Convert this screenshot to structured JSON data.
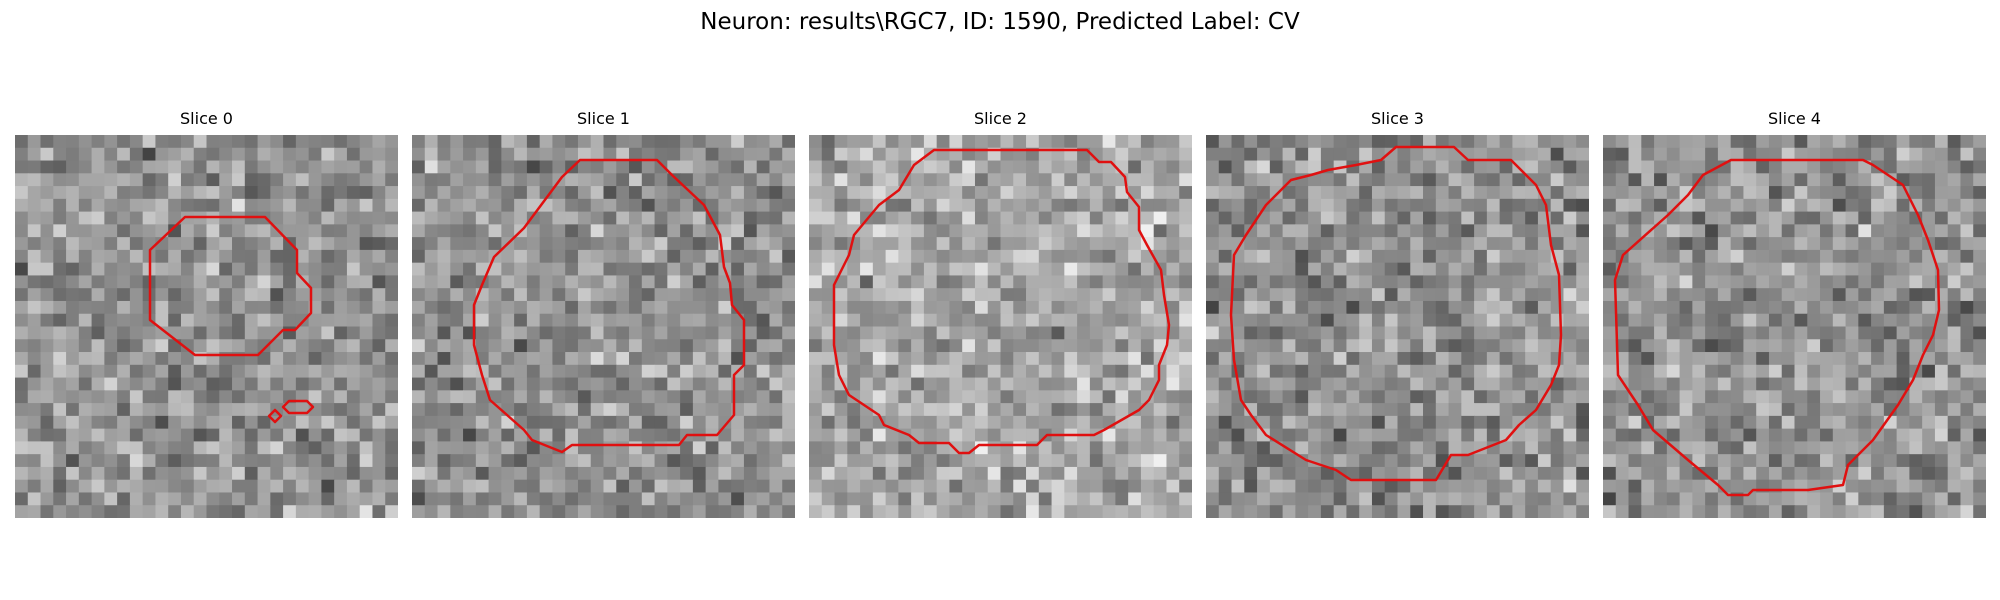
{
  "figure": {
    "title": "Neuron: results\\RGC7, ID: 1590, Predicted Label: CV"
  },
  "contour_color": "#e01010",
  "slices": [
    {
      "label": "Slice 0"
    },
    {
      "label": "Slice 1"
    },
    {
      "label": "Slice 2"
    },
    {
      "label": "Slice 3"
    },
    {
      "label": "Slice 4"
    }
  ]
}
